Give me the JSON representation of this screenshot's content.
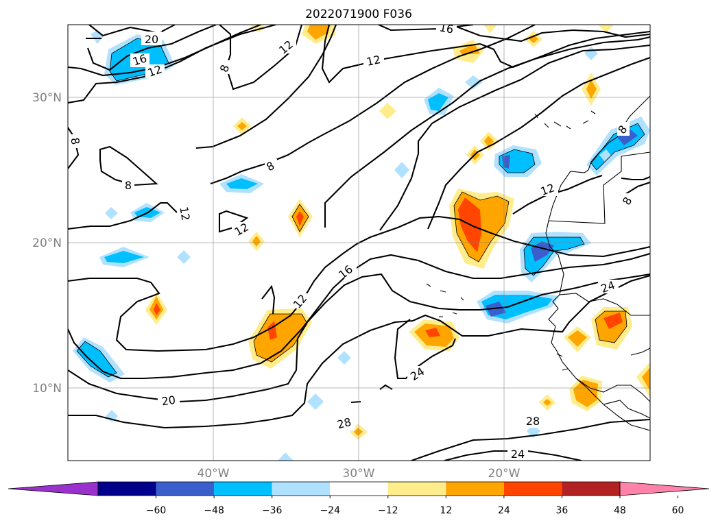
{
  "title": "2022071900 F036",
  "latitude_labels": [
    "30°N",
    "20°N",
    "10°N"
  ],
  "longitude_labels": [
    "40°W",
    "30°W",
    "20°W"
  ],
  "colorbar": {
    "ticks": [
      "−60",
      "−48",
      "−36",
      "−24",
      "−12",
      "12",
      "24",
      "36",
      "48",
      "60"
    ],
    "colors": [
      "#9932cc",
      "#00008b",
      "#3a5fcd",
      "#00bfff",
      "#b0e2ff",
      "#ffffff",
      "#ffec8b",
      "#ffa500",
      "#ff4500",
      "#b22222",
      "#ff82ab"
    ]
  },
  "contour_labels": [
    "20",
    "16",
    "12",
    "8",
    "12",
    "16",
    "12",
    "8",
    "8",
    "8",
    "12",
    "12",
    "12",
    "16",
    "12",
    "8",
    "8",
    "20",
    "24",
    "24",
    "28",
    "28",
    "24"
  ],
  "colors": {
    "blue_light": "#b0e2ff",
    "blue": "#00bfff",
    "blue_dark": "#3a5fcd",
    "navy": "#00008b",
    "yellow": "#ffec8b",
    "orange": "#ffa500",
    "red_orange": "#ff4500",
    "firebrick": "#b22222"
  }
}
